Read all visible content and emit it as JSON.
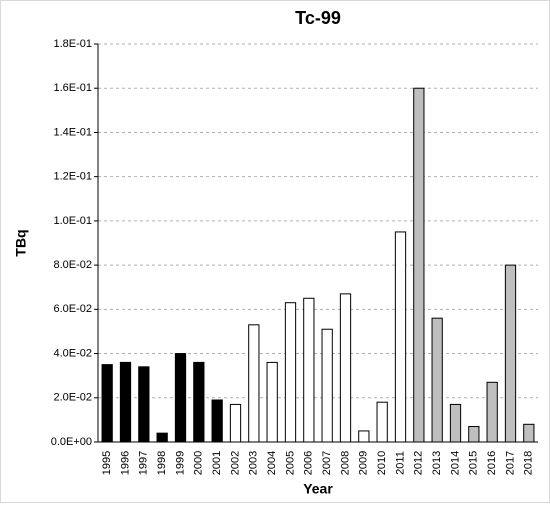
{
  "chart_data": {
    "type": "bar",
    "title": "Tc-99",
    "xlabel": "Year",
    "ylabel": "TBq",
    "categories": [
      "1995",
      "1996",
      "1997",
      "1998",
      "1999",
      "2000",
      "2001",
      "2002",
      "2003",
      "2004",
      "2005",
      "2006",
      "2007",
      "2008",
      "2009",
      "2010",
      "2011",
      "2012",
      "2013",
      "2014",
      "2015",
      "2016",
      "2017",
      "2018"
    ],
    "values": [
      0.035,
      0.036,
      0.034,
      0.004,
      0.04,
      0.036,
      0.019,
      0.017,
      0.053,
      0.036,
      0.063,
      0.065,
      0.051,
      0.067,
      0.005,
      0.018,
      0.095,
      0.16,
      0.056,
      0.017,
      0.007,
      0.027,
      0.08,
      0.008
    ],
    "colors": [
      "#000000",
      "#000000",
      "#000000",
      "#000000",
      "#000000",
      "#000000",
      "#000000",
      "#ffffff",
      "#ffffff",
      "#ffffff",
      "#ffffff",
      "#ffffff",
      "#ffffff",
      "#ffffff",
      "#ffffff",
      "#ffffff",
      "#ffffff",
      "#bfbfbf",
      "#bfbfbf",
      "#bfbfbf",
      "#bfbfbf",
      "#bfbfbf",
      "#bfbfbf",
      "#bfbfbf"
    ],
    "ylim": [
      0,
      0.18
    ],
    "yticks": [
      {
        "value": 0,
        "label": "0.0E+00"
      },
      {
        "value": 0.02,
        "label": "2.0E-02"
      },
      {
        "value": 0.04,
        "label": "4.0E-02"
      },
      {
        "value": 0.06,
        "label": "6.0E-02"
      },
      {
        "value": 0.08,
        "label": "8.0E-02"
      },
      {
        "value": 0.1,
        "label": "1.0E-01"
      },
      {
        "value": 0.12,
        "label": "1.2E-01"
      },
      {
        "value": 0.14,
        "label": "1.4E-01"
      },
      {
        "value": 0.16,
        "label": "1.6E-01"
      },
      {
        "value": 0.18,
        "label": "1.8E-01"
      }
    ],
    "grid": true
  }
}
